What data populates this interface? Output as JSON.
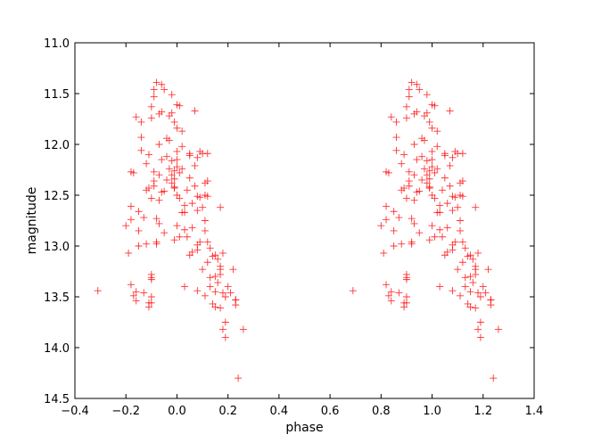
{
  "chart_data": {
    "type": "scatter",
    "xlabel": "phase",
    "ylabel": "magnitude",
    "xlim": [
      -0.4,
      1.4
    ],
    "ylim": [
      11.0,
      14.5
    ],
    "y_inverted": true,
    "grid": false,
    "marker": "+",
    "marker_color": "#ff0000",
    "x_ticks": [
      "−0.4",
      "−0.2",
      "0.0",
      "0.2",
      "0.4",
      "0.6",
      "0.8",
      "1.0",
      "1.2",
      "1.4"
    ],
    "y_ticks": [
      "11.0",
      "11.5",
      "12.0",
      "12.5",
      "13.0",
      "13.5",
      "14.0",
      "14.5"
    ],
    "points": [
      [
        -0.31,
        13.44
      ],
      [
        -0.2,
        12.8
      ],
      [
        -0.19,
        13.07
      ],
      [
        -0.18,
        12.27
      ],
      [
        -0.18,
        12.61
      ],
      [
        -0.18,
        12.74
      ],
      [
        -0.18,
        13.38
      ],
      [
        -0.17,
        13.49
      ],
      [
        -0.17,
        12.28
      ],
      [
        -0.16,
        11.73
      ],
      [
        -0.16,
        13.45
      ],
      [
        -0.16,
        13.54
      ],
      [
        -0.15,
        12.66
      ],
      [
        -0.15,
        12.85
      ],
      [
        -0.15,
        13.0
      ],
      [
        -0.14,
        12.06
      ],
      [
        -0.14,
        11.78
      ],
      [
        -0.14,
        11.93
      ],
      [
        -0.13,
        12.72
      ],
      [
        -0.13,
        13.46
      ],
      [
        -0.12,
        12.19
      ],
      [
        -0.12,
        12.45
      ],
      [
        -0.12,
        12.98
      ],
      [
        -0.11,
        12.1
      ],
      [
        -0.11,
        13.56
      ],
      [
        -0.11,
        13.6
      ],
      [
        -0.11,
        12.43
      ],
      [
        -0.1,
        11.63
      ],
      [
        -0.1,
        11.74
      ],
      [
        -0.1,
        12.53
      ],
      [
        -0.1,
        13.31
      ],
      [
        -0.1,
        13.33
      ],
      [
        -0.1,
        13.5
      ],
      [
        -0.1,
        13.56
      ],
      [
        -0.1,
        13.28
      ],
      [
        -0.09,
        11.46
      ],
      [
        -0.09,
        11.53
      ],
      [
        -0.09,
        12.27
      ],
      [
        -0.09,
        12.41
      ],
      [
        -0.09,
        12.36
      ],
      [
        -0.08,
        11.39
      ],
      [
        -0.08,
        12.73
      ],
      [
        -0.08,
        12.96
      ],
      [
        -0.08,
        12.98
      ],
      [
        -0.07,
        11.7
      ],
      [
        -0.07,
        12.0
      ],
      [
        -0.07,
        12.3
      ],
      [
        -0.07,
        12.55
      ],
      [
        -0.07,
        12.78
      ],
      [
        -0.06,
        11.41
      ],
      [
        -0.06,
        11.68
      ],
      [
        -0.06,
        12.15
      ],
      [
        -0.06,
        12.47
      ],
      [
        -0.05,
        11.46
      ],
      [
        -0.05,
        12.46
      ],
      [
        -0.05,
        12.87
      ],
      [
        -0.04,
        11.94
      ],
      [
        -0.04,
        12.12
      ],
      [
        -0.04,
        12.35
      ],
      [
        -0.03,
        11.72
      ],
      [
        -0.03,
        11.96
      ],
      [
        -0.03,
        12.24
      ],
      [
        -0.02,
        12.3
      ],
      [
        -0.02,
        12.38
      ],
      [
        -0.02,
        11.69
      ],
      [
        -0.02,
        12.16
      ],
      [
        -0.02,
        11.51
      ],
      [
        -0.01,
        11.78
      ],
      [
        -0.01,
        12.26
      ],
      [
        -0.01,
        12.34
      ],
      [
        -0.01,
        12.42
      ],
      [
        -0.01,
        12.94
      ],
      [
        -0.01,
        12.43
      ],
      [
        0.0,
        12.07
      ],
      [
        0.0,
        12.22
      ],
      [
        0.0,
        12.15
      ],
      [
        0.0,
        11.61
      ],
      [
        0.0,
        11.84
      ],
      [
        0.0,
        12.5
      ],
      [
        0.0,
        12.8
      ],
      [
        0.01,
        11.62
      ],
      [
        0.01,
        12.53
      ],
      [
        0.01,
        12.91
      ],
      [
        0.01,
        12.28
      ],
      [
        0.02,
        11.87
      ],
      [
        0.02,
        12.02
      ],
      [
        0.02,
        12.24
      ],
      [
        0.02,
        12.67
      ],
      [
        0.03,
        12.6
      ],
      [
        0.03,
        12.67
      ],
      [
        0.03,
        12.84
      ],
      [
        0.03,
        13.4
      ],
      [
        0.04,
        12.45
      ],
      [
        0.04,
        12.91
      ],
      [
        0.05,
        12.09
      ],
      [
        0.05,
        12.11
      ],
      [
        0.05,
        12.33
      ],
      [
        0.05,
        13.09
      ],
      [
        0.06,
        12.58
      ],
      [
        0.06,
        12.82
      ],
      [
        0.06,
        13.06
      ],
      [
        0.07,
        11.67
      ],
      [
        0.07,
        12.21
      ],
      [
        0.07,
        12.41
      ],
      [
        0.08,
        12.13
      ],
      [
        0.08,
        12.51
      ],
      [
        0.08,
        12.65
      ],
      [
        0.08,
        12.99
      ],
      [
        0.08,
        13.04
      ],
      [
        0.08,
        13.44
      ],
      [
        0.09,
        12.07
      ],
      [
        0.09,
        12.52
      ],
      [
        0.09,
        12.96
      ],
      [
        0.1,
        12.09
      ],
      [
        0.1,
        12.62
      ],
      [
        0.1,
        13.23
      ],
      [
        0.11,
        12.38
      ],
      [
        0.11,
        12.5
      ],
      [
        0.11,
        12.75
      ],
      [
        0.11,
        13.49
      ],
      [
        0.11,
        12.85
      ],
      [
        0.12,
        12.51
      ],
      [
        0.12,
        12.09
      ],
      [
        0.12,
        13.16
      ],
      [
        0.12,
        12.96
      ],
      [
        0.12,
        12.36
      ],
      [
        0.13,
        13.31
      ],
      [
        0.13,
        13.4
      ],
      [
        0.13,
        13.02
      ],
      [
        0.14,
        13.57
      ],
      [
        0.14,
        13.1
      ],
      [
        0.15,
        13.45
      ],
      [
        0.15,
        13.3
      ],
      [
        0.15,
        13.09
      ],
      [
        0.15,
        13.6
      ],
      [
        0.16,
        13.36
      ],
      [
        0.16,
        13.13
      ],
      [
        0.17,
        13.23
      ],
      [
        0.17,
        13.61
      ],
      [
        0.17,
        12.62
      ],
      [
        0.17,
        13.28
      ],
      [
        0.17,
        13.2
      ],
      [
        0.18,
        13.82
      ],
      [
        0.18,
        13.46
      ],
      [
        0.18,
        13.07
      ],
      [
        0.19,
        13.9
      ],
      [
        0.19,
        13.5
      ],
      [
        0.19,
        13.75
      ],
      [
        0.2,
        13.4
      ],
      [
        0.21,
        13.46
      ],
      [
        0.22,
        13.23
      ],
      [
        0.23,
        13.58
      ],
      [
        0.23,
        13.53
      ],
      [
        0.23,
        13.53
      ],
      [
        0.24,
        14.3
      ],
      [
        0.26,
        13.82
      ],
      [
        0.69,
        13.44
      ],
      [
        0.8,
        12.8
      ],
      [
        0.81,
        13.07
      ],
      [
        0.82,
        12.27
      ],
      [
        0.82,
        12.61
      ],
      [
        0.82,
        12.74
      ],
      [
        0.82,
        13.38
      ],
      [
        0.83,
        13.49
      ],
      [
        0.83,
        12.28
      ],
      [
        0.84,
        11.73
      ],
      [
        0.84,
        13.45
      ],
      [
        0.84,
        13.54
      ],
      [
        0.85,
        12.66
      ],
      [
        0.85,
        12.85
      ],
      [
        0.85,
        13.0
      ],
      [
        0.86,
        12.06
      ],
      [
        0.86,
        11.78
      ],
      [
        0.86,
        11.93
      ],
      [
        0.87,
        12.72
      ],
      [
        0.87,
        13.46
      ],
      [
        0.88,
        12.19
      ],
      [
        0.88,
        12.45
      ],
      [
        0.88,
        12.98
      ],
      [
        0.89,
        12.1
      ],
      [
        0.89,
        13.56
      ],
      [
        0.89,
        13.6
      ],
      [
        0.89,
        12.43
      ],
      [
        0.9,
        11.63
      ],
      [
        0.9,
        11.74
      ],
      [
        0.9,
        12.53
      ],
      [
        0.9,
        13.31
      ],
      [
        0.9,
        13.33
      ],
      [
        0.9,
        13.5
      ],
      [
        0.9,
        13.56
      ],
      [
        0.9,
        13.28
      ],
      [
        0.91,
        11.46
      ],
      [
        0.91,
        11.53
      ],
      [
        0.91,
        12.27
      ],
      [
        0.91,
        12.41
      ],
      [
        0.91,
        12.36
      ],
      [
        0.92,
        11.39
      ],
      [
        0.92,
        12.73
      ],
      [
        0.92,
        12.96
      ],
      [
        0.92,
        12.98
      ],
      [
        0.93,
        11.7
      ],
      [
        0.93,
        12.0
      ],
      [
        0.93,
        12.3
      ],
      [
        0.93,
        12.55
      ],
      [
        0.93,
        12.78
      ],
      [
        0.94,
        11.41
      ],
      [
        0.94,
        11.68
      ],
      [
        0.94,
        12.15
      ],
      [
        0.94,
        12.47
      ],
      [
        0.95,
        11.46
      ],
      [
        0.95,
        12.46
      ],
      [
        0.95,
        12.87
      ],
      [
        0.96,
        11.94
      ],
      [
        0.96,
        12.12
      ],
      [
        0.96,
        12.35
      ],
      [
        0.97,
        11.72
      ],
      [
        0.97,
        11.96
      ],
      [
        0.97,
        12.24
      ],
      [
        0.98,
        12.3
      ],
      [
        0.98,
        12.38
      ],
      [
        0.98,
        11.69
      ],
      [
        0.98,
        12.16
      ],
      [
        0.98,
        11.51
      ],
      [
        0.99,
        11.78
      ],
      [
        0.99,
        12.26
      ],
      [
        0.99,
        12.34
      ],
      [
        0.99,
        12.42
      ],
      [
        0.99,
        12.94
      ],
      [
        0.99,
        12.43
      ],
      [
        1.0,
        12.07
      ],
      [
        1.0,
        12.22
      ],
      [
        1.0,
        12.15
      ],
      [
        1.0,
        11.61
      ],
      [
        1.0,
        11.84
      ],
      [
        1.0,
        12.5
      ],
      [
        1.0,
        12.8
      ],
      [
        1.01,
        11.62
      ],
      [
        1.01,
        12.53
      ],
      [
        1.01,
        12.91
      ],
      [
        1.01,
        12.28
      ],
      [
        1.02,
        11.87
      ],
      [
        1.02,
        12.02
      ],
      [
        1.02,
        12.24
      ],
      [
        1.02,
        12.67
      ],
      [
        1.03,
        12.6
      ],
      [
        1.03,
        12.67
      ],
      [
        1.03,
        12.84
      ],
      [
        1.03,
        13.4
      ],
      [
        1.04,
        12.45
      ],
      [
        1.04,
        12.91
      ],
      [
        1.05,
        12.09
      ],
      [
        1.05,
        12.11
      ],
      [
        1.05,
        12.33
      ],
      [
        1.05,
        13.09
      ],
      [
        1.06,
        12.58
      ],
      [
        1.06,
        12.82
      ],
      [
        1.06,
        13.06
      ],
      [
        1.07,
        11.67
      ],
      [
        1.07,
        12.21
      ],
      [
        1.07,
        12.41
      ],
      [
        1.08,
        12.13
      ],
      [
        1.08,
        12.51
      ],
      [
        1.08,
        12.65
      ],
      [
        1.08,
        12.99
      ],
      [
        1.08,
        13.04
      ],
      [
        1.08,
        13.44
      ],
      [
        1.09,
        12.07
      ],
      [
        1.09,
        12.52
      ],
      [
        1.09,
        12.96
      ],
      [
        1.1,
        12.09
      ],
      [
        1.1,
        12.62
      ],
      [
        1.1,
        13.23
      ],
      [
        1.11,
        12.38
      ],
      [
        1.11,
        12.5
      ],
      [
        1.11,
        12.75
      ],
      [
        1.11,
        13.49
      ],
      [
        1.11,
        12.85
      ],
      [
        1.12,
        12.51
      ],
      [
        1.12,
        12.09
      ],
      [
        1.12,
        13.16
      ],
      [
        1.12,
        12.96
      ],
      [
        1.12,
        12.36
      ],
      [
        1.13,
        13.31
      ],
      [
        1.13,
        13.4
      ],
      [
        1.13,
        13.02
      ],
      [
        1.14,
        13.57
      ],
      [
        1.14,
        13.1
      ],
      [
        1.15,
        13.45
      ],
      [
        1.15,
        13.3
      ],
      [
        1.15,
        13.09
      ],
      [
        1.15,
        13.6
      ],
      [
        1.16,
        13.36
      ],
      [
        1.16,
        13.13
      ],
      [
        1.17,
        13.23
      ],
      [
        1.17,
        13.61
      ],
      [
        1.17,
        12.62
      ],
      [
        1.17,
        13.28
      ],
      [
        1.17,
        13.2
      ],
      [
        1.18,
        13.82
      ],
      [
        1.18,
        13.46
      ],
      [
        1.18,
        13.07
      ],
      [
        1.19,
        13.9
      ],
      [
        1.19,
        13.5
      ],
      [
        1.19,
        13.75
      ],
      [
        1.2,
        13.4
      ],
      [
        1.21,
        13.46
      ],
      [
        1.22,
        13.23
      ],
      [
        1.23,
        13.58
      ],
      [
        1.23,
        13.53
      ],
      [
        1.23,
        13.53
      ],
      [
        1.24,
        14.3
      ],
      [
        1.26,
        13.82
      ]
    ]
  }
}
